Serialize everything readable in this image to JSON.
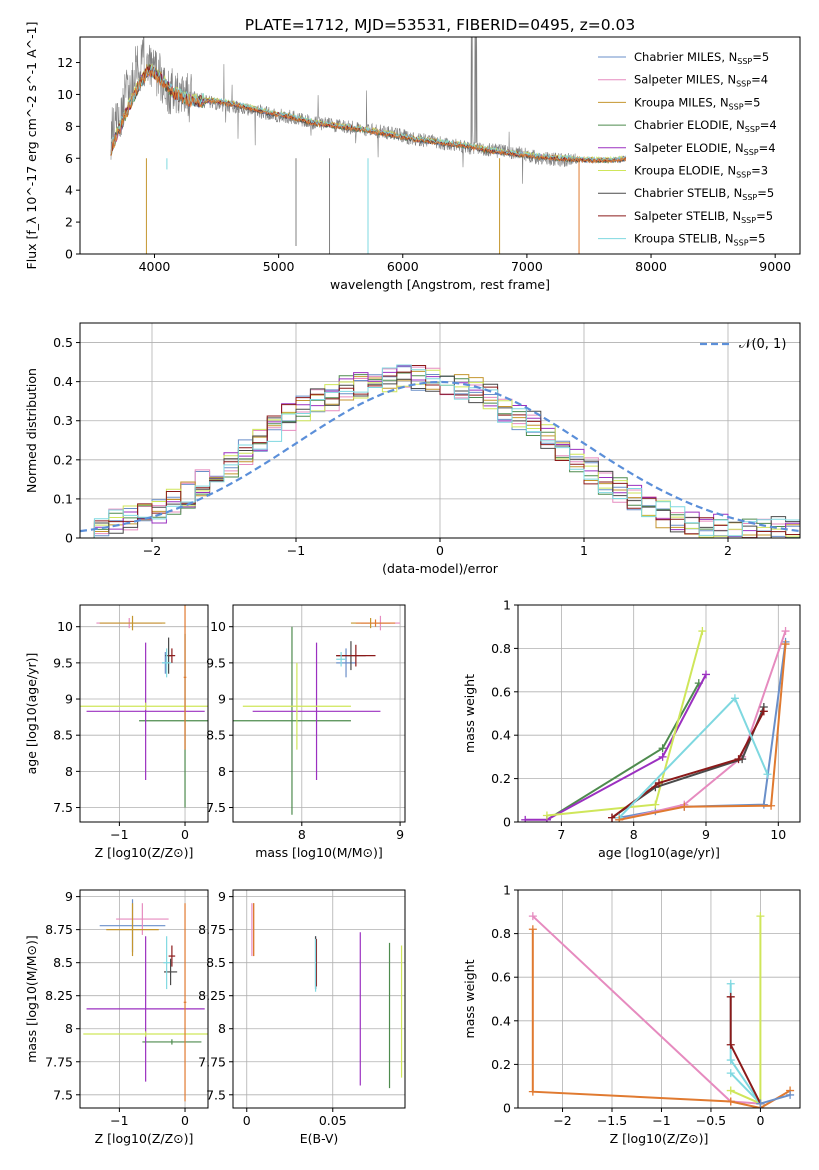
{
  "figure": {
    "title": "PLATE=1712, MJD=53531, FIBERID=0495, z=0.03"
  },
  "colors": {
    "Chabrier MILES": "#6a8fc9",
    "Salpeter MILES": "#e68bbf",
    "Kroupa MILES": "#c4962f",
    "Chabrier ELODIE": "#4e8b4e",
    "Salpeter ELODIE": "#9b30c0",
    "Kroupa ELODIE": "#cfe65a",
    "Chabrier STELIB": "#4a4a4a",
    "Salpeter STELIB": "#8b1a1a",
    "Kroupa STELIB": "#7fd8e0",
    "data": "#808080",
    "gauss": "#5b8fd9",
    "orange": "#e07a30"
  },
  "chart_data": [
    {
      "id": "spectrum",
      "type": "line",
      "xlabel": "wavelength [Angstrom, rest frame]",
      "ylabel": "Flux [f_λ 10^-17 erg cm^-2 s^-1 A^-1]",
      "xlim": [
        3400,
        9200
      ],
      "ylim": [
        0,
        13.6
      ],
      "xticks": [
        4000,
        5000,
        6000,
        7000,
        8000,
        9000
      ],
      "yticks": [
        0,
        2,
        4,
        6,
        8,
        10,
        12
      ],
      "grid": false,
      "legend": "top-right",
      "legend_entries": [
        {
          "model": "Chabrier MILES",
          "n": "5"
        },
        {
          "model": "Salpeter MILES",
          "n": "4"
        },
        {
          "model": "Kroupa MILES",
          "n": "5"
        },
        {
          "model": "Chabrier ELODIE",
          "n": "4"
        },
        {
          "model": "Salpeter ELODIE",
          "n": "4"
        },
        {
          "model": "Kroupa ELODIE",
          "n": "3"
        },
        {
          "model": "Chabrier STELIB",
          "n": "5"
        },
        {
          "model": "Salpeter STELIB",
          "n": "5"
        },
        {
          "model": "Kroupa STELIB",
          "n": "5"
        }
      ],
      "model_curve": [
        [
          3650,
          6.6
        ],
        [
          3750,
          8.5
        ],
        [
          3850,
          10.2
        ],
        [
          3950,
          11.6
        ],
        [
          4050,
          11.0
        ],
        [
          4150,
          10.1
        ],
        [
          4300,
          9.6
        ],
        [
          4500,
          9.6
        ],
        [
          4700,
          9.3
        ],
        [
          4900,
          8.9
        ],
        [
          5100,
          8.6
        ],
        [
          5300,
          8.2
        ],
        [
          5500,
          8.0
        ],
        [
          5700,
          7.8
        ],
        [
          5900,
          7.5
        ],
        [
          6100,
          7.2
        ],
        [
          6300,
          7.0
        ],
        [
          6500,
          6.8
        ],
        [
          6700,
          6.5
        ],
        [
          6900,
          6.3
        ],
        [
          7100,
          6.1
        ],
        [
          7300,
          6.0
        ],
        [
          7500,
          5.9
        ],
        [
          7700,
          5.9
        ],
        [
          7800,
          6.0
        ]
      ],
      "data_curve": [
        [
          3650,
          7.5
        ],
        [
          3750,
          9.5
        ],
        [
          3850,
          11.5
        ],
        [
          3950,
          12.2
        ],
        [
          4050,
          11.0
        ],
        [
          4150,
          10.0
        ],
        [
          4300,
          9.8
        ],
        [
          4500,
          9.4
        ],
        [
          4700,
          9.2
        ],
        [
          4900,
          8.8
        ],
        [
          5100,
          8.6
        ],
        [
          5300,
          8.2
        ],
        [
          5500,
          8.0
        ],
        [
          5700,
          7.8
        ],
        [
          5900,
          7.6
        ],
        [
          6100,
          7.2
        ],
        [
          6300,
          7.0
        ],
        [
          6500,
          6.7
        ],
        [
          6700,
          6.5
        ],
        [
          6900,
          6.4
        ],
        [
          7100,
          6.0
        ],
        [
          7300,
          5.9
        ],
        [
          7400,
          5.9
        ]
      ],
      "absorption_dips": [
        [
          3935,
          0
        ],
        [
          4100,
          5.3
        ],
        [
          5140,
          0.5
        ],
        [
          5410,
          0
        ],
        [
          5720,
          0
        ],
        [
          6780,
          0
        ],
        [
          7420,
          0
        ]
      ]
    },
    {
      "id": "residuals",
      "type": "line",
      "xlabel": "(data-model)/error",
      "ylabel": "Normed distribution",
      "xlim": [
        -2.5,
        2.5
      ],
      "ylim": [
        0,
        0.55
      ],
      "xticks": [
        -2,
        -1,
        0,
        1,
        2
      ],
      "yticks": [
        0.0,
        0.1,
        0.2,
        0.3,
        0.4,
        0.5
      ],
      "grid": true,
      "legend": "top-right",
      "gauss_label": "𝒩(0, 1)",
      "bin_width": 0.1,
      "hist_base": [
        0.02,
        0.03,
        0.04,
        0.05,
        0.06,
        0.07,
        0.09,
        0.11,
        0.14,
        0.16,
        0.19,
        0.22,
        0.25,
        0.28,
        0.31,
        0.33,
        0.35,
        0.36,
        0.38,
        0.39,
        0.4,
        0.4,
        0.41,
        0.41,
        0.41,
        0.4,
        0.39,
        0.38,
        0.36,
        0.33,
        0.31,
        0.29,
        0.26,
        0.23,
        0.2,
        0.17,
        0.14,
        0.12,
        0.1,
        0.08,
        0.06,
        0.05,
        0.04,
        0.03,
        0.03,
        0.02,
        0.02,
        0.02,
        0.02,
        0.02
      ]
    },
    {
      "id": "z-age",
      "type": "scatter",
      "xlabel": "Z [log10(Z/Z⊙)]",
      "ylabel": "age  [log10(age/yr)]",
      "xlim": [
        -1.6,
        0.35
      ],
      "ylim": [
        7.3,
        10.3
      ],
      "xticks": [
        -1,
        0
      ],
      "yticks": [
        7.5,
        8.0,
        8.5,
        9.0,
        9.5,
        10.0
      ],
      "grid": true,
      "points": [
        {
          "model": "Chabrier MILES",
          "x": -0.3,
          "y": 9.5,
          "xe": 0.05,
          "ye": 0.15
        },
        {
          "model": "Salpeter MILES",
          "x": -0.85,
          "y": 10.05,
          "xe": 0.5,
          "ye": 0.07
        },
        {
          "model": "Kroupa MILES",
          "x": -0.8,
          "y": 10.05,
          "xe": 0.5,
          "ye": 0.1
        },
        {
          "model": "Chabrier ELODIE",
          "x": 0.0,
          "y": 8.7,
          "xe": 0.7,
          "ye": 1.2
        },
        {
          "model": "Salpeter ELODIE",
          "x": -0.6,
          "y": 8.83,
          "xe": 0.9,
          "ye": 0.95
        },
        {
          "model": "Kroupa ELODIE",
          "x": -0.6,
          "y": 8.9,
          "xe": 1.0,
          "ye": 0.05
        },
        {
          "model": "Chabrier STELIB",
          "x": -0.25,
          "y": 9.6,
          "xe": 0.05,
          "ye": 0.25
        },
        {
          "model": "Salpeter STELIB",
          "x": -0.2,
          "y": 9.6,
          "xe": 0.05,
          "ye": 0.1
        },
        {
          "model": "Kroupa STELIB",
          "x": -0.28,
          "y": 9.5,
          "xe": 0.07,
          "ye": 0.2
        },
        {
          "model": "orange",
          "x": 0.0,
          "y": 9.3,
          "xe": 0.02,
          "ye": 1.0
        }
      ]
    },
    {
      "id": "mass-age",
      "type": "scatter",
      "xlabel": "mass [log10(M/M⊙)]",
      "ylabel": "",
      "xlim": [
        7.3,
        9.05
      ],
      "ylim": [
        7.3,
        10.3
      ],
      "xticks": [
        8,
        9
      ],
      "yticks": [
        7.5,
        8.0,
        8.5,
        9.0,
        9.5,
        10.0
      ],
      "grid": true,
      "points": [
        {
          "model": "Chabrier MILES",
          "x": 8.45,
          "y": 9.5,
          "xe": 0.1,
          "ye": 0.2
        },
        {
          "model": "Salpeter MILES",
          "x": 8.8,
          "y": 10.05,
          "xe": 0.2,
          "ye": 0.1
        },
        {
          "model": "Kroupa MILES",
          "x": 8.7,
          "y": 10.05,
          "xe": 0.2,
          "ye": 0.07
        },
        {
          "model": "Chabrier ELODIE",
          "x": 7.9,
          "y": 8.7,
          "xe": 0.6,
          "ye": 1.3
        },
        {
          "model": "Salpeter ELODIE",
          "x": 8.15,
          "y": 8.83,
          "xe": 0.65,
          "ye": 0.95
        },
        {
          "model": "Kroupa ELODIE",
          "x": 7.95,
          "y": 8.9,
          "xe": 0.55,
          "ye": 0.6
        },
        {
          "model": "Chabrier STELIB",
          "x": 8.5,
          "y": 9.6,
          "xe": 0.15,
          "ye": 0.2
        },
        {
          "model": "Salpeter STELIB",
          "x": 8.55,
          "y": 9.6,
          "xe": 0.2,
          "ye": 0.15
        },
        {
          "model": "Kroupa STELIB",
          "x": 8.4,
          "y": 9.55,
          "xe": 0.05,
          "ye": 0.1
        },
        {
          "model": "orange",
          "x": 8.75,
          "y": 10.05,
          "xe": 0.2,
          "ye": 0.05
        }
      ]
    },
    {
      "id": "age-weight",
      "type": "line",
      "xlabel": "age  [log10(age/yr)]",
      "ylabel": "mass weight",
      "xlim": [
        6.4,
        10.3
      ],
      "ylim": [
        0,
        1.0
      ],
      "xticks": [
        7,
        8,
        9,
        10
      ],
      "yticks": [
        0.0,
        0.2,
        0.4,
        0.6,
        0.8,
        1.0
      ],
      "grid": true,
      "series": [
        {
          "model": "Chabrier MILES",
          "x": [
            7.8,
            8.3,
            8.7,
            9.8,
            10.1
          ],
          "y": [
            0.02,
            0.05,
            0.07,
            0.08,
            0.83
          ]
        },
        {
          "model": "Salpeter MILES",
          "x": [
            7.8,
            8.7,
            9.5,
            10.1
          ],
          "y": [
            0.01,
            0.08,
            0.3,
            0.88
          ]
        },
        {
          "model": "Chabrier ELODIE",
          "x": [
            6.8,
            8.4,
            8.9
          ],
          "y": [
            0.01,
            0.34,
            0.64
          ]
        },
        {
          "model": "Salpeter ELODIE",
          "x": [
            6.5,
            6.8,
            8.4,
            9.0
          ],
          "y": [
            0.01,
            0.01,
            0.3,
            0.68
          ]
        },
        {
          "model": "Kroupa ELODIE",
          "x": [
            6.8,
            8.3,
            8.95
          ],
          "y": [
            0.03,
            0.08,
            0.88
          ]
        },
        {
          "model": "Chabrier STELIB",
          "x": [
            7.7,
            8.3,
            9.5,
            9.8
          ],
          "y": [
            0.02,
            0.16,
            0.29,
            0.53
          ]
        },
        {
          "model": "Salpeter STELIB",
          "x": [
            7.7,
            8.35,
            9.45,
            9.8
          ],
          "y": [
            0.02,
            0.18,
            0.29,
            0.51
          ]
        },
        {
          "model": "Kroupa STELIB",
          "x": [
            7.8,
            9.4,
            9.85
          ],
          "y": [
            0.02,
            0.57,
            0.22
          ]
        },
        {
          "model": "orange",
          "x": [
            7.8,
            8.7,
            9.9,
            10.1
          ],
          "y": [
            0.01,
            0.07,
            0.075,
            0.82
          ]
        }
      ]
    },
    {
      "id": "z-mass",
      "type": "scatter",
      "xlabel": "Z [log10(Z/Z⊙)]",
      "ylabel": "mass [log10(M/M⊙)]",
      "xlim": [
        -1.6,
        0.35
      ],
      "ylim": [
        7.4,
        9.05
      ],
      "xticks": [
        -1,
        0
      ],
      "yticks": [
        7.5,
        7.75,
        8.0,
        8.25,
        8.5,
        8.75,
        9.0
      ],
      "grid": true,
      "points": [
        {
          "model": "Chabrier MILES",
          "x": -0.8,
          "y": 8.78,
          "xe": 0.5,
          "ye": 0.2
        },
        {
          "model": "Salpeter MILES",
          "x": -0.65,
          "y": 8.83,
          "xe": 0.4,
          "ye": 0.12
        },
        {
          "model": "Kroupa MILES",
          "x": -0.8,
          "y": 8.75,
          "xe": 0.4,
          "ye": 0.2
        },
        {
          "model": "Chabrier ELODIE",
          "x": -0.2,
          "y": 7.9,
          "xe": 0.45,
          "ye": 0.02
        },
        {
          "model": "Salpeter ELODIE",
          "x": -0.6,
          "y": 8.15,
          "xe": 0.9,
          "ye": 0.55
        },
        {
          "model": "Kroupa ELODIE",
          "x": -0.6,
          "y": 7.96,
          "xe": 0.95,
          "ye": 0.02
        },
        {
          "model": "Chabrier STELIB",
          "x": -0.22,
          "y": 8.43,
          "xe": 0.1,
          "ye": 0.1
        },
        {
          "model": "Salpeter STELIB",
          "x": -0.2,
          "y": 8.55,
          "xe": 0.05,
          "ye": 0.08
        },
        {
          "model": "Kroupa STELIB",
          "x": -0.28,
          "y": 8.5,
          "xe": 0.05,
          "ye": 0.2
        },
        {
          "model": "orange",
          "x": 0.0,
          "y": 8.2,
          "xe": 0.02,
          "ye": 0.75
        }
      ]
    },
    {
      "id": "ebv-mass",
      "type": "scatter",
      "xlabel": "E(B-V)",
      "ylabel": "",
      "xlim": [
        -0.008,
        0.092
      ],
      "ylim": [
        7.4,
        9.05
      ],
      "xticks": [
        0.0,
        0.05
      ],
      "yticks": [
        7.5,
        7.75,
        8.0,
        8.25,
        8.5,
        8.75,
        9.0
      ],
      "grid": true,
      "points": [
        {
          "model": "Chabrier MILES",
          "x": 0.04,
          "y": 8.5,
          "xe": 0.0,
          "ye": 0.2
        },
        {
          "model": "Salpeter MILES",
          "x": 0.003,
          "y": 8.75,
          "xe": 0.0,
          "ye": 0.2
        },
        {
          "model": "Kroupa MILES",
          "x": 0.004,
          "y": 8.75,
          "xe": 0.0,
          "ye": 0.2
        },
        {
          "model": "Chabrier ELODIE",
          "x": 0.083,
          "y": 8.1,
          "xe": 0.0,
          "ye": 0.55
        },
        {
          "model": "Salpeter ELODIE",
          "x": 0.066,
          "y": 8.15,
          "xe": 0.0,
          "ye": 0.58
        },
        {
          "model": "Kroupa ELODIE",
          "x": 0.09,
          "y": 8.13,
          "xe": 0.0,
          "ye": 0.5
        },
        {
          "model": "Chabrier STELIB",
          "x": 0.04,
          "y": 8.5,
          "xe": 0.0,
          "ye": 0.2
        },
        {
          "model": "Salpeter STELIB",
          "x": 0.0405,
          "y": 8.5,
          "xe": 0.0,
          "ye": 0.18
        },
        {
          "model": "Kroupa STELIB",
          "x": 0.04,
          "y": 8.48,
          "xe": 0.0,
          "ye": 0.2
        },
        {
          "model": "orange",
          "x": 0.004,
          "y": 8.75,
          "xe": 0.0,
          "ye": 0.2
        }
      ]
    },
    {
      "id": "z-weight",
      "type": "line",
      "xlabel": "Z [log10(Z/Z⊙)]",
      "ylabel": "mass weight",
      "xlim": [
        -2.45,
        0.4
      ],
      "ylim": [
        0,
        1.0
      ],
      "xticks": [
        -2.0,
        -1.5,
        -1.0,
        -0.5,
        0.0
      ],
      "yticks": [
        0.0,
        0.2,
        0.4,
        0.6,
        0.8,
        1.0
      ],
      "grid": true,
      "series": [
        {
          "model": "Salpeter MILES",
          "x": [
            -2.3,
            -0.3,
            0.0
          ],
          "y": [
            0.88,
            0.03,
            0.02
          ]
        },
        {
          "model": "Kroupa ELODIE",
          "x": [
            -0.3,
            0.0,
            0.0
          ],
          "y": [
            0.08,
            0.02,
            0.88
          ]
        },
        {
          "model": "Kroupa STELIB",
          "x": [
            -0.3,
            -0.3,
            0.0,
            -0.3
          ],
          "y": [
            0.57,
            0.22,
            0.02,
            0.16
          ]
        },
        {
          "model": "Salpeter STELIB",
          "x": [
            -0.3,
            -0.3,
            0.0
          ],
          "y": [
            0.51,
            0.29,
            0.02
          ]
        },
        {
          "model": "orange",
          "x": [
            -2.3,
            -2.3,
            -0.3,
            0.0,
            0.3
          ],
          "y": [
            0.82,
            0.075,
            0.03,
            0.0,
            0.08
          ]
        },
        {
          "model": "Chabrier MILES",
          "x": [
            0.0,
            0.3
          ],
          "y": [
            0.02,
            0.06
          ]
        }
      ]
    }
  ]
}
